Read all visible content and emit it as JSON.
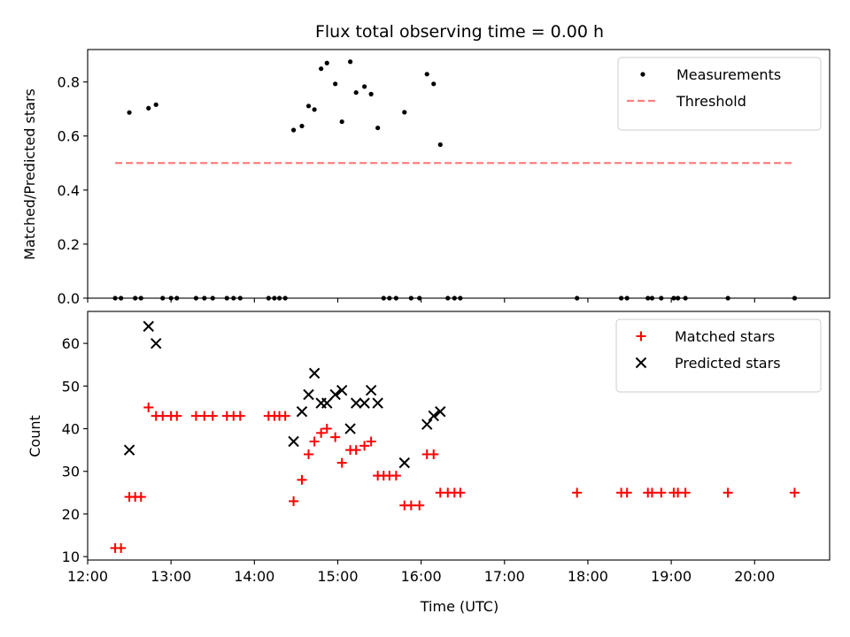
{
  "chart_data": [
    {
      "type": "scatter",
      "title": "Flux total observing time = 0.00 h",
      "xlabel": "",
      "ylabel": "Matched/Predicted stars",
      "x_unit": "time (UTC, hours)",
      "xlim": [
        12.0,
        20.9
      ],
      "ylim": [
        0.0,
        0.92
      ],
      "yticks": [
        0.0,
        0.2,
        0.4,
        0.6,
        0.8
      ],
      "ytick_labels": [
        "0.0",
        "0.2",
        "0.4",
        "0.6",
        "0.8"
      ],
      "xticks": [
        12,
        13,
        14,
        15,
        16,
        17,
        18,
        19,
        20
      ],
      "show_xtick_labels": false,
      "grid": false,
      "legend_position": "top-right",
      "series": [
        {
          "name": "Measurements",
          "marker": "dot",
          "color": "#000000",
          "x": [
            12.33,
            12.4,
            12.5,
            12.57,
            12.64,
            12.73,
            12.82,
            12.9,
            13.0,
            13.07,
            13.3,
            13.4,
            13.5,
            13.67,
            13.75,
            13.83,
            14.17,
            14.24,
            14.3,
            14.37,
            14.47,
            14.57,
            14.65,
            14.72,
            14.8,
            14.87,
            14.97,
            15.05,
            15.15,
            15.22,
            15.32,
            15.4,
            15.48,
            15.55,
            15.62,
            15.7,
            15.8,
            15.88,
            15.98,
            16.07,
            16.15,
            16.23,
            16.32,
            16.4,
            16.47,
            17.87,
            18.4,
            18.47,
            18.72,
            18.77,
            18.88,
            19.03,
            19.08,
            19.17,
            19.68,
            20.48
          ],
          "y": [
            0.0,
            0.0,
            0.687,
            0.0,
            0.0,
            0.703,
            0.716,
            0.0,
            0.0,
            0.0,
            0.0,
            0.0,
            0.0,
            0.0,
            0.0,
            0.0,
            0.0,
            0.0,
            0.0,
            0.0,
            0.622,
            0.637,
            0.711,
            0.698,
            0.849,
            0.87,
            0.793,
            0.653,
            0.875,
            0.761,
            0.783,
            0.755,
            0.63,
            0.0,
            0.0,
            0.0,
            0.688,
            0.0,
            0.0,
            0.829,
            0.793,
            0.568,
            0.0,
            0.0,
            0.0,
            0.0,
            0.0,
            0.0,
            0.0,
            0.0,
            0.0,
            0.0,
            0.0,
            0.0,
            0.0,
            0.0
          ]
        },
        {
          "name": "Threshold",
          "style": "dashed",
          "color": "#ff7f7f",
          "x": [
            12.33,
            20.48
          ],
          "y": [
            0.5,
            0.5
          ]
        }
      ]
    },
    {
      "type": "scatter",
      "title": "",
      "xlabel": "Time (UTC)",
      "ylabel": "Count",
      "x_unit": "time (UTC, hours)",
      "xlim": [
        12.0,
        20.9
      ],
      "ylim": [
        9.2,
        67.5
      ],
      "yticks": [
        10,
        20,
        30,
        40,
        50,
        60
      ],
      "ytick_labels": [
        "10",
        "20",
        "30",
        "40",
        "50",
        "60"
      ],
      "xticks": [
        12,
        13,
        14,
        15,
        16,
        17,
        18,
        19,
        20
      ],
      "xtick_labels": [
        "12:00",
        "13:00",
        "14:00",
        "15:00",
        "16:00",
        "17:00",
        "18:00",
        "19:00",
        "20:00"
      ],
      "grid": false,
      "legend_position": "top-right",
      "series": [
        {
          "name": "Matched stars",
          "marker": "plus",
          "color": "#ff0000",
          "x": [
            12.33,
            12.4,
            12.5,
            12.57,
            12.64,
            12.73,
            12.82,
            12.9,
            13.0,
            13.07,
            13.3,
            13.4,
            13.5,
            13.67,
            13.75,
            13.83,
            14.17,
            14.24,
            14.3,
            14.37,
            14.47,
            14.57,
            14.65,
            14.72,
            14.8,
            14.87,
            14.97,
            15.05,
            15.15,
            15.22,
            15.32,
            15.4,
            15.48,
            15.55,
            15.62,
            15.7,
            15.8,
            15.88,
            15.98,
            16.07,
            16.15,
            16.23,
            16.32,
            16.4,
            16.47,
            17.87,
            18.4,
            18.47,
            18.72,
            18.77,
            18.88,
            19.03,
            19.08,
            19.17,
            19.68,
            20.48
          ],
          "y": [
            12,
            12,
            24,
            24,
            24,
            45,
            43,
            43,
            43,
            43,
            43,
            43,
            43,
            43,
            43,
            43,
            43,
            43,
            43,
            43,
            23,
            28,
            34,
            37,
            39,
            40,
            38,
            32,
            35,
            35,
            36,
            37,
            29,
            29,
            29,
            29,
            22,
            22,
            22,
            34,
            34,
            25,
            25,
            25,
            25,
            25,
            25,
            25,
            25,
            25,
            25,
            25,
            25,
            25,
            25,
            25
          ]
        },
        {
          "name": "Predicted stars",
          "marker": "x",
          "color": "#000000",
          "x": [
            12.5,
            12.73,
            12.82,
            14.47,
            14.57,
            14.65,
            14.72,
            14.8,
            14.87,
            14.97,
            15.05,
            15.15,
            15.22,
            15.32,
            15.4,
            15.48,
            15.8,
            16.07,
            16.15,
            16.23
          ],
          "y": [
            35,
            64,
            60,
            37,
            44,
            48,
            53,
            46,
            46,
            48,
            49,
            40,
            46,
            46,
            49,
            46,
            32,
            41,
            43,
            44
          ]
        }
      ]
    }
  ]
}
